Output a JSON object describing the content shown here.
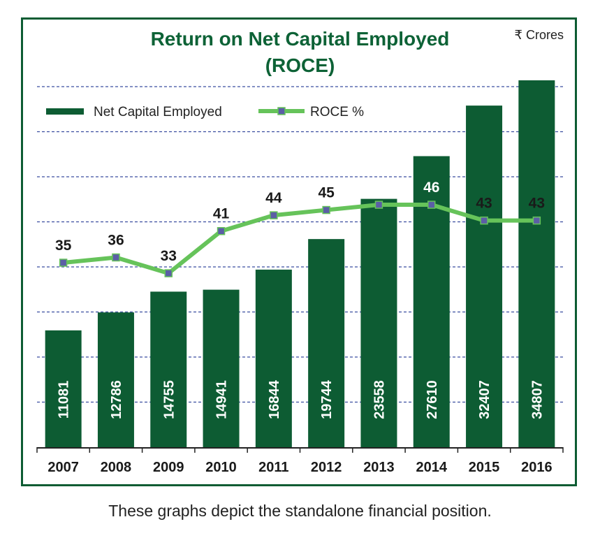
{
  "chart_data": {
    "type": "bar",
    "title": "Return on Net Capital Employed",
    "title_line2": "(ROCE)",
    "unit_label": "₹ Crores",
    "categories": [
      "2007",
      "2008",
      "2009",
      "2010",
      "2011",
      "2012",
      "2013",
      "2014",
      "2015",
      "2016"
    ],
    "series": [
      {
        "name": "Net Capital Employed",
        "type": "bar",
        "values": [
          11081,
          12786,
          14755,
          14941,
          16844,
          19744,
          23558,
          27610,
          32407,
          34807
        ],
        "color": "#0d5c33"
      },
      {
        "name": "ROCE %",
        "type": "line",
        "values": [
          35,
          36,
          33,
          41,
          44,
          45,
          46,
          46,
          43,
          43
        ],
        "color": "#66c35a",
        "marker_color": "#5b5ea6"
      }
    ],
    "ylim_bars": [
      0,
      35000
    ],
    "ylim_line": [
      0,
      70
    ],
    "grid": true,
    "legend_position": "top-left"
  },
  "footer": {
    "caption": "These graphs depict the standalone financial position."
  }
}
